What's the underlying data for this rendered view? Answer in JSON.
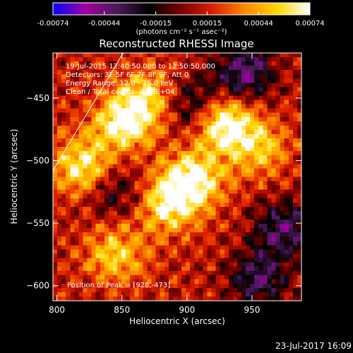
{
  "chart_data": {
    "type": "heatmap",
    "title": "Reconstructed RHESSI Image",
    "xlabel": "Heliocentric X (arcsec)",
    "ylabel": "Heliocentric Y (arcsec)",
    "xlim": [
      797,
      988
    ],
    "ylim": [
      -612,
      -414
    ],
    "x_ticks": [
      800,
      850,
      900,
      950
    ],
    "y_ticks": [
      -600,
      -550,
      -500,
      -450
    ],
    "colorbar": {
      "label": "(photons cm⁻² s⁻¹ asec⁻²)",
      "range": [
        -0.00074,
        0.00074
      ],
      "ticks": [
        "-0.00074",
        "-0.00044",
        "-0.00015",
        "0.00015",
        "0.00044",
        "0.00074"
      ],
      "colormap": [
        "#0000ff",
        "#a000a0",
        "#4a1a5a",
        "#000000",
        "#7a0000",
        "#e02000",
        "#ff8a00",
        "#ffd800",
        "#ffffff"
      ]
    },
    "annotations": [
      "19-Jul-2015 12:40:50.000 to 12:50:50.000",
      "Detectors: 3F 5F 6F 7F 8F 9F, Att 0",
      "Energy Range: 12.0 - 25.0 keV",
      "Clean  / Total counts: 4.28E+04"
    ],
    "peak_label": "Position of Peak = [928,-473]",
    "peak": [
      928,
      -473
    ],
    "limb_line": [
      [
        797,
        -508
      ],
      [
        851,
        -414
      ]
    ],
    "bright_sources": [
      {
        "x": 905,
        "y": -515,
        "amplitude": 0.00062
      },
      {
        "x": 929,
        "y": -470,
        "amplitude": 0.0007
      },
      {
        "x": 850,
        "y": -470,
        "amplitude": 0.0006
      },
      {
        "x": 820,
        "y": -505,
        "amplitude": 0.00055
      },
      {
        "x": 885,
        "y": -535,
        "amplitude": 0.00055
      },
      {
        "x": 845,
        "y": -575,
        "amplitude": 0.00045
      },
      {
        "x": 870,
        "y": -450,
        "amplitude": 0.00045
      },
      {
        "x": 955,
        "y": -490,
        "amplitude": 0.0004
      }
    ],
    "dark_regions": [
      {
        "x": 945,
        "y": -430,
        "amplitude": -0.00055
      },
      {
        "x": 975,
        "y": -555,
        "amplitude": -0.0005
      },
      {
        "x": 955,
        "y": -595,
        "amplitude": -0.00045
      },
      {
        "x": 905,
        "y": -455,
        "amplitude": -0.0004
      },
      {
        "x": 845,
        "y": -525,
        "amplitude": -0.0003
      }
    ]
  },
  "timestamp": "23-Jul-2017 16:09"
}
